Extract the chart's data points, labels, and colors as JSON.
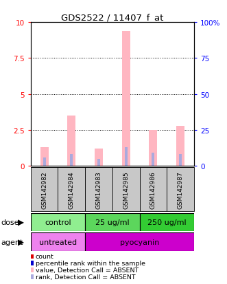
{
  "title": "GDS2522 / 11407_f_at",
  "samples": [
    "GSM142982",
    "GSM142984",
    "GSM142983",
    "GSM142985",
    "GSM142986",
    "GSM142987"
  ],
  "pink_bars": [
    1.3,
    3.5,
    1.2,
    9.4,
    2.5,
    2.8
  ],
  "blue_bars": [
    0.6,
    0.8,
    0.5,
    1.3,
    0.9,
    0.8
  ],
  "left_ylim": [
    0,
    10
  ],
  "right_ylim": [
    0,
    100
  ],
  "left_yticks": [
    0,
    2.5,
    5.0,
    7.5,
    10
  ],
  "right_yticks": [
    0,
    25,
    50,
    75,
    100
  ],
  "dose_labels": [
    "control",
    "25 ug/ml",
    "250 ug/ml"
  ],
  "dose_colors": [
    "#90EE90",
    "#5CD65C",
    "#33CC33"
  ],
  "agent_labels": [
    "untreated",
    "pyocyanin"
  ],
  "agent_colors": [
    "#EE82EE",
    "#CC00CC"
  ],
  "pink_color": "#FFB6C1",
  "blue_color": "#AAAADD",
  "red_color": "#DD0000",
  "blue_marker_color": "#0000CC",
  "bg_color": "#FFFFFF",
  "bar_bg_color": "#C8C8C8",
  "bar_width": 0.3,
  "blue_bar_width": 0.1
}
